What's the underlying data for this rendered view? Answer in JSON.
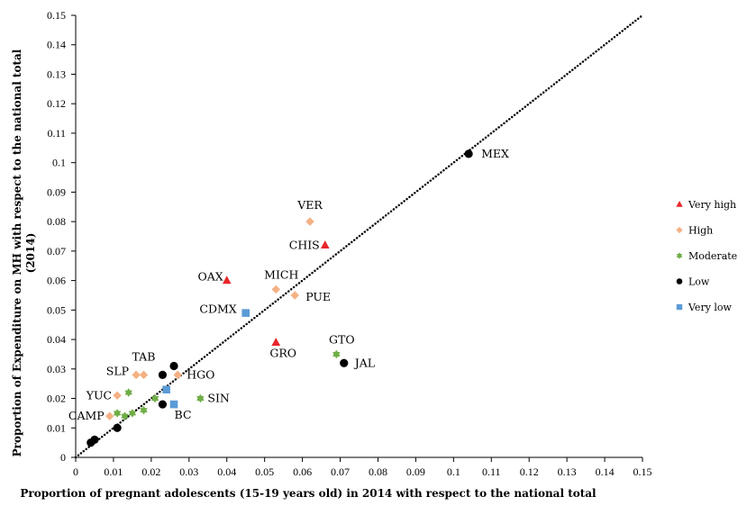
{
  "chart_data": {
    "type": "scatter",
    "xlabel": "Proportion of pregnant adolescents (15-19 years old) in 2014 with respect to the national total",
    "ylabel": "Proportion of Expenditure on MH with respect to the national total (2014)",
    "xlim": [
      0,
      0.15
    ],
    "ylim": [
      0,
      0.15
    ],
    "x_ticks": [
      "0",
      "0.01",
      "0.02",
      "0.03",
      "0.04",
      "0.05",
      "0.06",
      "0.07",
      "0.08",
      "0.09",
      "0.1",
      "0.11",
      "0.12",
      "0.13",
      "0.14",
      "0.15"
    ],
    "y_ticks": [
      "0",
      "0.01",
      "0.02",
      "0.03",
      "0.04",
      "0.05",
      "0.06",
      "0.07",
      "0.08",
      "0.09",
      "0.1",
      "0.11",
      "0.12",
      "0.13",
      "0.14",
      "0.15"
    ],
    "grid": false,
    "legend_position": "right",
    "reference_line": {
      "style": "dotted",
      "from": [
        0,
        0
      ],
      "to": [
        0.15,
        0.15
      ]
    },
    "series": [
      {
        "name": "Very high",
        "marker": "triangle",
        "color": "#e8262a",
        "points": [
          {
            "x": 0.04,
            "y": 0.06,
            "label": "OAX"
          },
          {
            "x": 0.066,
            "y": 0.072,
            "label": "CHIS"
          },
          {
            "x": 0.053,
            "y": 0.039,
            "label": "GRO"
          }
        ]
      },
      {
        "name": "High",
        "marker": "diamond",
        "color": "#f4b183",
        "points": [
          {
            "x": 0.062,
            "y": 0.08,
            "label": "VER"
          },
          {
            "x": 0.053,
            "y": 0.057,
            "label": "MICH"
          },
          {
            "x": 0.058,
            "y": 0.055,
            "label": "PUE"
          },
          {
            "x": 0.016,
            "y": 0.028,
            "label": "SLP"
          },
          {
            "x": 0.018,
            "y": 0.028,
            "label": "TAB"
          },
          {
            "x": 0.027,
            "y": 0.028,
            "label": "HGO"
          },
          {
            "x": 0.011,
            "y": 0.021,
            "label": "YUC"
          },
          {
            "x": 0.009,
            "y": 0.014,
            "label": "CAMP"
          }
        ]
      },
      {
        "name": "Moderate",
        "marker": "star",
        "color": "#70ad47",
        "points": [
          {
            "x": 0.069,
            "y": 0.035,
            "label": "GTO"
          },
          {
            "x": 0.033,
            "y": 0.02,
            "label": "SIN"
          },
          {
            "x": 0.014,
            "y": 0.022
          },
          {
            "x": 0.011,
            "y": 0.015
          },
          {
            "x": 0.013,
            "y": 0.014
          },
          {
            "x": 0.015,
            "y": 0.015
          },
          {
            "x": 0.018,
            "y": 0.016
          },
          {
            "x": 0.021,
            "y": 0.02
          }
        ]
      },
      {
        "name": "Low",
        "marker": "circle",
        "color": "#000000",
        "points": [
          {
            "x": 0.104,
            "y": 0.103,
            "label": "MEX"
          },
          {
            "x": 0.071,
            "y": 0.032,
            "label": "JAL"
          },
          {
            "x": 0.023,
            "y": 0.028
          },
          {
            "x": 0.026,
            "y": 0.031
          },
          {
            "x": 0.023,
            "y": 0.018
          },
          {
            "x": 0.011,
            "y": 0.01
          },
          {
            "x": 0.004,
            "y": 0.005
          },
          {
            "x": 0.005,
            "y": 0.006
          }
        ]
      },
      {
        "name": "Very low",
        "marker": "square",
        "color": "#5b9bd5",
        "points": [
          {
            "x": 0.045,
            "y": 0.049,
            "label": "CDMX"
          },
          {
            "x": 0.026,
            "y": 0.018,
            "label": "BC"
          },
          {
            "x": 0.024,
            "y": 0.023
          }
        ]
      }
    ]
  }
}
